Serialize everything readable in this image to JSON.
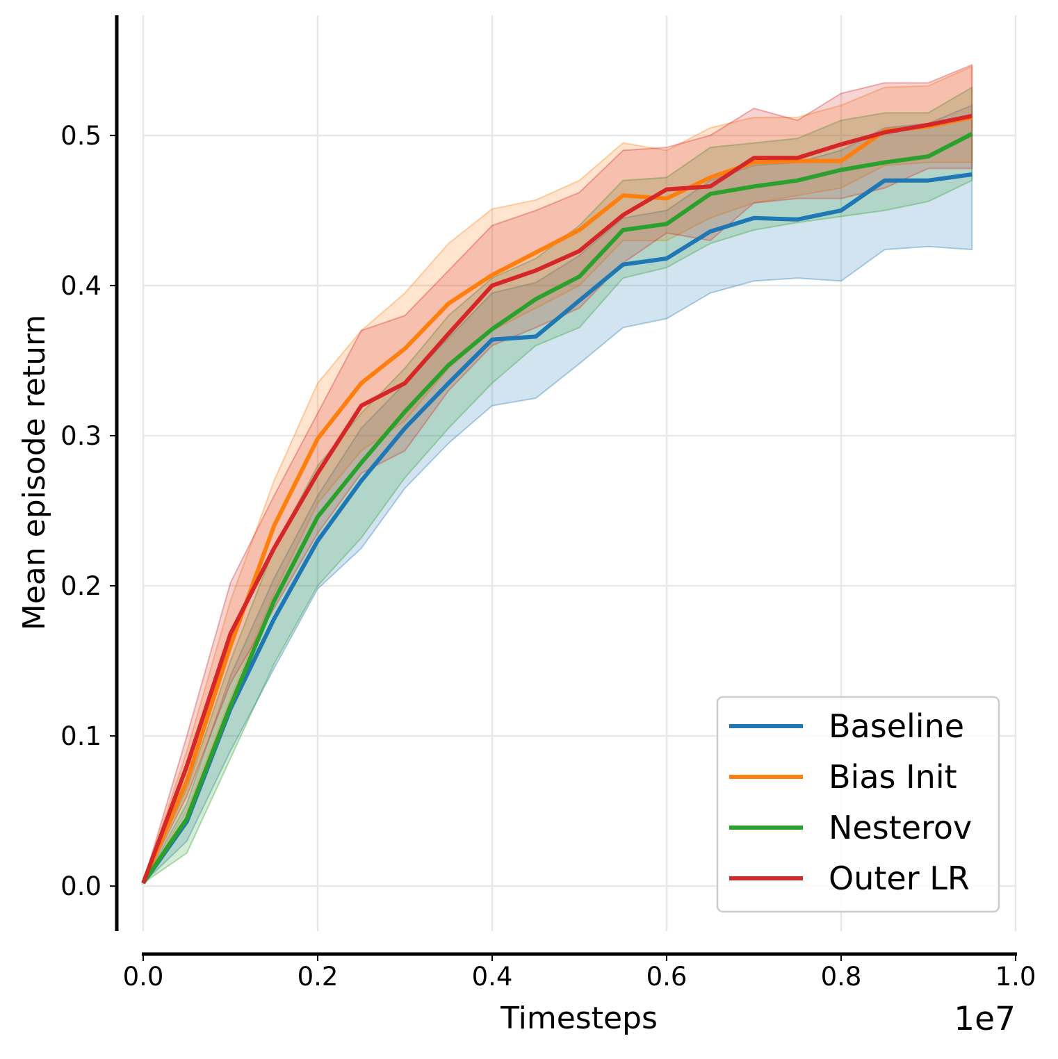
{
  "chart_data": {
    "type": "line",
    "title": "",
    "xlabel": "Timesteps",
    "ylabel": "Mean episode return",
    "x_multiplier_label": "1e7",
    "xlim": [
      0.0,
      1.0
    ],
    "ylim": [
      -0.03,
      0.58
    ],
    "x_ticks": [
      0.0,
      0.2,
      0.4,
      0.6,
      0.8,
      1.0
    ],
    "x_tick_labels": [
      "0.0",
      "0.2",
      "0.4",
      "0.6",
      "0.8",
      "1.0"
    ],
    "y_ticks": [
      0.0,
      0.1,
      0.2,
      0.3,
      0.4,
      0.5
    ],
    "y_tick_labels": [
      "0.0",
      "0.1",
      "0.2",
      "0.3",
      "0.4",
      "0.5"
    ],
    "grid": true,
    "legend_position": "bottom-right",
    "x": [
      0.0,
      0.05,
      0.1,
      0.15,
      0.2,
      0.25,
      0.3,
      0.35,
      0.4,
      0.45,
      0.5,
      0.55,
      0.6,
      0.65,
      0.7,
      0.75,
      0.8,
      0.85,
      0.9,
      0.95
    ],
    "series": [
      {
        "name": "Baseline",
        "color": "#1f77b4",
        "values": [
          0.002,
          0.043,
          0.118,
          0.178,
          0.23,
          0.27,
          0.305,
          0.335,
          0.364,
          0.366,
          0.39,
          0.414,
          0.418,
          0.436,
          0.445,
          0.444,
          0.45,
          0.47,
          0.47,
          0.474
        ],
        "lower": [
          0.002,
          0.03,
          0.09,
          0.145,
          0.198,
          0.225,
          0.265,
          0.295,
          0.32,
          0.325,
          0.348,
          0.372,
          0.378,
          0.395,
          0.403,
          0.405,
          0.403,
          0.424,
          0.426,
          0.424
        ],
        "upper": [
          0.002,
          0.055,
          0.14,
          0.205,
          0.26,
          0.305,
          0.335,
          0.365,
          0.395,
          0.402,
          0.42,
          0.445,
          0.45,
          0.47,
          0.48,
          0.482,
          0.49,
          0.505,
          0.508,
          0.52
        ]
      },
      {
        "name": "Bias Init",
        "color": "#ff7f0e",
        "values": [
          0.002,
          0.07,
          0.16,
          0.24,
          0.298,
          0.335,
          0.358,
          0.388,
          0.407,
          0.422,
          0.437,
          0.46,
          0.458,
          0.472,
          0.482,
          0.483,
          0.483,
          0.503,
          0.506,
          0.512
        ],
        "lower": [
          0.002,
          0.05,
          0.125,
          0.195,
          0.255,
          0.29,
          0.31,
          0.345,
          0.37,
          0.385,
          0.4,
          0.43,
          0.43,
          0.445,
          0.455,
          0.46,
          0.465,
          0.48,
          0.482,
          0.482
        ],
        "upper": [
          0.002,
          0.09,
          0.19,
          0.27,
          0.335,
          0.37,
          0.395,
          0.428,
          0.451,
          0.457,
          0.47,
          0.495,
          0.49,
          0.505,
          0.512,
          0.512,
          0.52,
          0.532,
          0.533,
          0.546
        ]
      },
      {
        "name": "Nesterov",
        "color": "#2ca02c",
        "values": [
          0.002,
          0.045,
          0.12,
          0.19,
          0.246,
          0.282,
          0.316,
          0.347,
          0.371,
          0.391,
          0.406,
          0.437,
          0.441,
          0.461,
          0.466,
          0.47,
          0.477,
          0.482,
          0.486,
          0.501
        ],
        "lower": [
          0.002,
          0.022,
          0.085,
          0.148,
          0.2,
          0.232,
          0.272,
          0.305,
          0.335,
          0.36,
          0.372,
          0.405,
          0.412,
          0.428,
          0.437,
          0.442,
          0.446,
          0.45,
          0.456,
          0.47
        ],
        "upper": [
          0.002,
          0.065,
          0.15,
          0.225,
          0.28,
          0.315,
          0.345,
          0.38,
          0.405,
          0.418,
          0.44,
          0.47,
          0.472,
          0.492,
          0.495,
          0.498,
          0.51,
          0.515,
          0.515,
          0.532
        ]
      },
      {
        "name": "Outer LR",
        "color": "#d62728",
        "values": [
          0.002,
          0.08,
          0.168,
          0.225,
          0.275,
          0.32,
          0.335,
          0.368,
          0.4,
          0.41,
          0.423,
          0.447,
          0.464,
          0.466,
          0.485,
          0.485,
          0.494,
          0.502,
          0.507,
          0.513
        ],
        "lower": [
          0.002,
          0.06,
          0.135,
          0.185,
          0.235,
          0.275,
          0.29,
          0.33,
          0.36,
          0.372,
          0.385,
          0.415,
          0.435,
          0.43,
          0.455,
          0.458,
          0.458,
          0.465,
          0.478,
          0.478
        ],
        "upper": [
          0.002,
          0.1,
          0.202,
          0.26,
          0.315,
          0.37,
          0.38,
          0.41,
          0.44,
          0.45,
          0.462,
          0.49,
          0.492,
          0.5,
          0.518,
          0.51,
          0.528,
          0.535,
          0.535,
          0.547
        ]
      }
    ]
  }
}
